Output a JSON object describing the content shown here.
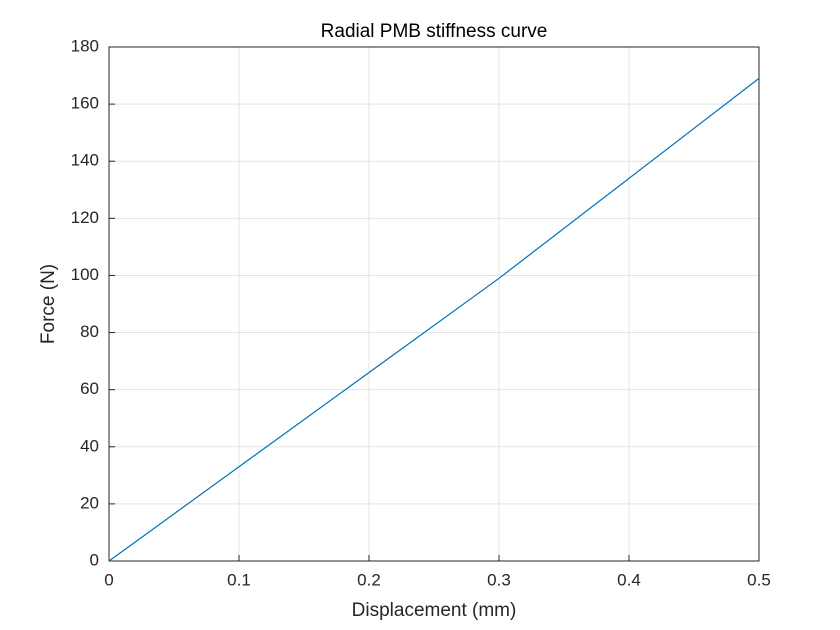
{
  "chart_data": {
    "type": "line",
    "title": "Radial PMB stiffness curve",
    "x_label": "Displacement (mm)",
    "y_label": "Force (N)",
    "x": [
      0,
      0.1,
      0.2,
      0.3,
      0.4,
      0.5
    ],
    "series": [
      {
        "color": "#0072bd",
        "values": [
          0,
          33,
          66,
          99,
          134,
          169
        ]
      }
    ],
    "xlim": [
      0,
      0.5
    ],
    "xticks": [
      0,
      0.1,
      0.2,
      0.3,
      0.4,
      0.5
    ],
    "ylim": [
      0,
      180
    ],
    "yticks": [
      0,
      20,
      40,
      60,
      80,
      100,
      120,
      140,
      160,
      180
    ],
    "grid": true
  }
}
